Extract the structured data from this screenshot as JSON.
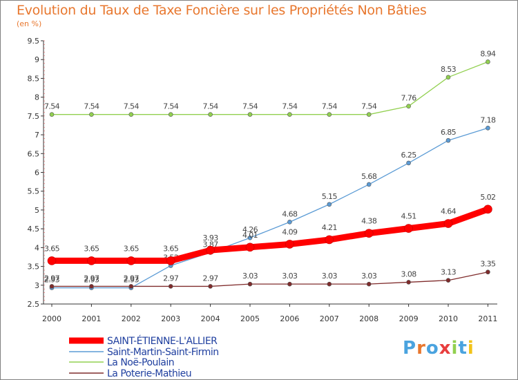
{
  "chart_data": {
    "type": "line",
    "title": "Evolution du Taux de Taxe Foncière sur les Propriétés Non Bâties",
    "unit": "(en %)",
    "x": [
      "2000",
      "2001",
      "2002",
      "2003",
      "2004",
      "2005",
      "2006",
      "2007",
      "2008",
      "2009",
      "2010",
      "2011"
    ],
    "ylim": [
      2.5,
      9.5
    ],
    "yticks": [
      "2.5",
      "3",
      "3.5",
      "4",
      "4.5",
      "5",
      "5.5",
      "6",
      "6.5",
      "7",
      "7.5",
      "8",
      "8.5",
      "9",
      "9.5"
    ],
    "grid": false,
    "legend_position": "bottom-left",
    "series": [
      {
        "name": "SAINT-ÉTIENNE-L'ALLIER",
        "color": "#ff0000",
        "values": [
          3.65,
          3.65,
          3.65,
          3.65,
          3.93,
          4.01,
          4.09,
          4.21,
          4.38,
          4.51,
          4.64,
          5.02
        ],
        "labels": [
          "3.65",
          "3.65",
          "3.65",
          "3.65",
          "3.93",
          "4.01",
          "4.09",
          "4.21",
          "4.38",
          "4.51",
          "4.64",
          "5.02"
        ]
      },
      {
        "name": "Saint-Martin-Saint-Firmin",
        "color": "#5b9bd5",
        "values": [
          2.93,
          2.93,
          2.93,
          3.52,
          3.87,
          4.26,
          4.68,
          5.15,
          5.68,
          6.25,
          6.85,
          7.18
        ],
        "labels": [
          "2.93",
          "2.93",
          "2.93",
          "3.52",
          "3.87",
          "4.26",
          "4.68",
          "5.15",
          "5.68",
          "6.25",
          "6.85",
          "7.18"
        ]
      },
      {
        "name": "La Noë-Poulain",
        "color": "#92d050",
        "values": [
          7.54,
          7.54,
          7.54,
          7.54,
          7.54,
          7.54,
          7.54,
          7.54,
          7.54,
          7.76,
          8.53,
          8.94
        ],
        "labels": [
          "7.54",
          "7.54",
          "7.54",
          "7.54",
          "7.54",
          "7.54",
          "7.54",
          "7.54",
          "7.54",
          "7.76",
          "8.53",
          "8.94"
        ]
      },
      {
        "name": "La Poterie-Mathieu",
        "color": "#7f2b2b",
        "values": [
          2.97,
          2.97,
          2.97,
          2.97,
          2.97,
          3.03,
          3.03,
          3.03,
          3.03,
          3.08,
          3.13,
          3.35
        ],
        "labels": [
          "2.97",
          "2.97",
          "2.97",
          "2.97",
          "2.97",
          "3.03",
          "3.03",
          "3.03",
          "3.03",
          "3.08",
          "3.13",
          "3.35"
        ]
      }
    ]
  },
  "logo": {
    "text": "Proxiti",
    "letters": [
      {
        "ch": "P",
        "color": "#4aa3df"
      },
      {
        "ch": "r",
        "color": "#e8772e"
      },
      {
        "ch": "o",
        "color": "#4aa3df"
      },
      {
        "ch": "x",
        "color": "#e83e3e"
      },
      {
        "ch": "i",
        "color": "#92d050"
      },
      {
        "ch": "t",
        "color": "#4aa3df"
      },
      {
        "ch": "i",
        "color": "#f2c318"
      }
    ]
  }
}
